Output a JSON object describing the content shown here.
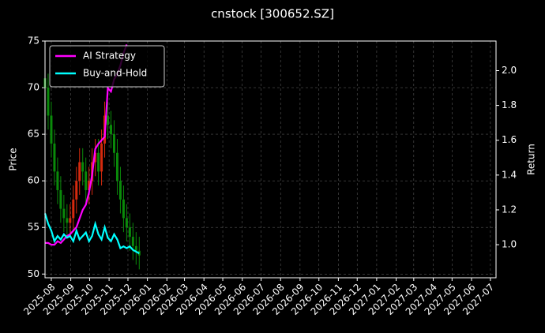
{
  "chart_data": {
    "type": "candlestick",
    "title": "cnstock [300652.SZ]",
    "ylabel": "Price",
    "y2label": "Return",
    "x": [
      "2025-07-22",
      "2025-07-27",
      "2025-08-01",
      "2025-08-06",
      "2025-08-11",
      "2025-08-16",
      "2025-08-21",
      "2025-08-26",
      "2025-08-31",
      "2025-09-05",
      "2025-09-10",
      "2025-09-15",
      "2025-09-20",
      "2025-09-25",
      "2025-09-30",
      "2025-10-05",
      "2025-10-10",
      "2025-10-15",
      "2025-10-20",
      "2025-10-25",
      "2025-10-30",
      "2025-11-04",
      "2025-11-09",
      "2025-11-14",
      "2025-11-19",
      "2025-11-24",
      "2025-11-29",
      "2025-12-04",
      "2025-12-09",
      "2025-12-14",
      "2025-12-19"
    ],
    "open": [
      71,
      70,
      67,
      64,
      61,
      59,
      57,
      56,
      55.5,
      56,
      58,
      60,
      62,
      61,
      59,
      60,
      62,
      63,
      61,
      64,
      67,
      66,
      65,
      63,
      60,
      58,
      56,
      55,
      54,
      53,
      52.5
    ],
    "high": [
      72.5,
      71.5,
      68.5,
      65.5,
      62.5,
      60.5,
      58.5,
      57.5,
      57.5,
      59.5,
      61.5,
      63.5,
      63.5,
      62.5,
      61.5,
      63.5,
      64.5,
      64.5,
      65.5,
      68.5,
      68.5,
      67.5,
      66.5,
      64.5,
      61.5,
      59.5,
      57.5,
      56.5,
      55.5,
      54.5,
      54
    ],
    "low": [
      68.5,
      65.5,
      62.5,
      59.5,
      57.5,
      55.5,
      54.5,
      54,
      54,
      54.5,
      56.5,
      58.5,
      59.5,
      57.5,
      57.5,
      58.5,
      60.5,
      59.5,
      59.5,
      62.5,
      64.5,
      63.5,
      61.5,
      58.5,
      56.5,
      54.5,
      53.5,
      52.5,
      51.5,
      51,
      50.5
    ],
    "close": [
      70,
      67,
      64,
      61,
      59,
      57,
      56,
      55.5,
      56,
      58,
      60,
      62,
      61,
      59,
      60,
      62,
      63,
      61,
      64,
      67,
      66,
      65,
      63,
      60,
      58,
      56,
      55,
      54,
      53,
      52.5,
      52
    ],
    "up_color": "#d62a0e",
    "down_color": "#0a8a0a",
    "series": [
      {
        "name": "AI Strategy",
        "color": "#ff00ff",
        "axis": "y2",
        "values": [
          1.01,
          1.01,
          1.0,
          1.0,
          1.02,
          1.01,
          1.03,
          1.05,
          1.06,
          1.08,
          1.1,
          1.15,
          1.2,
          1.23,
          1.3,
          1.4,
          1.55,
          1.58,
          1.6,
          1.62,
          1.9,
          1.88,
          1.95,
          1.98,
          2.03,
          2.1,
          2.15,
          null,
          null,
          null,
          null
        ]
      },
      {
        "name": "Buy-and-Hold",
        "color": "#00ffff",
        "axis": "y2",
        "values": [
          1.18,
          1.12,
          1.08,
          1.02,
          1.05,
          1.03,
          1.06,
          1.04,
          1.05,
          1.02,
          1.08,
          1.03,
          1.05,
          1.07,
          1.02,
          1.05,
          1.12,
          1.06,
          1.03,
          1.1,
          1.04,
          1.02,
          1.06,
          1.03,
          0.98,
          0.99,
          0.98,
          0.99,
          0.97,
          0.96,
          0.95
        ]
      }
    ],
    "xlim": [
      "2025-07-22",
      "2027-07-10"
    ],
    "xticks": [
      "2025-08",
      "2025-09",
      "2025-10",
      "2025-11",
      "2025-12",
      "2026-01",
      "2026-02",
      "2026-03",
      "2026-04",
      "2026-05",
      "2026-06",
      "2026-07",
      "2026-08",
      "2026-09",
      "2026-10",
      "2026-11",
      "2026-12",
      "2027-01",
      "2027-02",
      "2027-03",
      "2027-04",
      "2027-05",
      "2027-06",
      "2027-07"
    ],
    "ylim": [
      49.6,
      75
    ],
    "yticks": [
      50,
      55,
      60,
      65,
      70,
      75
    ],
    "y2lim": [
      0.81,
      2.17
    ],
    "y2ticks": [
      {
        "value": 1,
        "label": "1.0"
      },
      {
        "value": 1.2,
        "label": "1.2"
      },
      {
        "value": 1.4,
        "label": "1.4"
      },
      {
        "value": 1.6,
        "label": "1.6"
      },
      {
        "value": 1.8,
        "label": "1.8"
      },
      {
        "value": 2,
        "label": "2.0"
      }
    ],
    "grid": true,
    "legend": "upper left"
  }
}
